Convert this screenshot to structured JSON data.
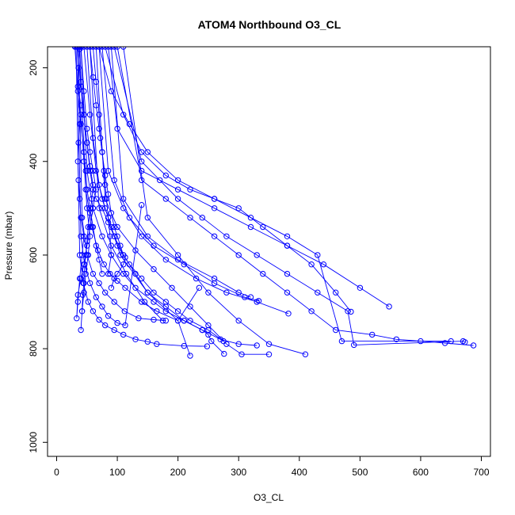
{
  "chart_data": {
    "type": "scatter",
    "title": "ATOM4 Northbound O3_CL",
    "xlabel": "O3_CL",
    "ylabel": "Pressure (mbar)",
    "xlim": [
      -15,
      715
    ],
    "ylim": [
      1030,
      155
    ],
    "y_reversed": true,
    "xticks": [
      0,
      100,
      200,
      300,
      400,
      500,
      600,
      700
    ],
    "yticks": [
      200,
      400,
      600,
      800,
      1000
    ],
    "grid": false,
    "series_color": "#0000ff",
    "series": [
      {
        "x": [
          40,
          45,
          50,
          55,
          60,
          65,
          60,
          55,
          50,
          45,
          40,
          35,
          33,
          35,
          38,
          42,
          45,
          40,
          38,
          36,
          35,
          36,
          38,
          40,
          35,
          36,
          38
        ],
        "y": [
          155,
          250,
          330,
          380,
          420,
          460,
          500,
          540,
          580,
          620,
          650,
          685,
          735,
          700,
          650,
          600,
          560,
          520,
          480,
          440,
          400,
          360,
          320,
          280,
          240,
          200,
          160
        ]
      },
      {
        "x": [
          35,
          40,
          45,
          50,
          55,
          60,
          58,
          55,
          52,
          50,
          48,
          46,
          45,
          43,
          42,
          40,
          42,
          45,
          48,
          52,
          55,
          50,
          45,
          40
        ],
        "y": [
          155,
          230,
          300,
          360,
          410,
          450,
          480,
          510,
          540,
          570,
          600,
          630,
          660,
          685,
          720,
          760,
          720,
          680,
          640,
          600,
          560,
          500,
          400,
          300
        ]
      },
      {
        "x": [
          55,
          60,
          65,
          70,
          75,
          80,
          85,
          90,
          95,
          100,
          105,
          110,
          113,
          110,
          100,
          95,
          90
        ],
        "y": [
          155,
          220,
          280,
          330,
          380,
          430,
          470,
          510,
          540,
          560,
          580,
          600,
          605,
          620,
          640,
          650,
          670
        ]
      },
      {
        "x": [
          60,
          65,
          70,
          72,
          75,
          78,
          80,
          82,
          85,
          88,
          90,
          85
        ],
        "y": [
          155,
          230,
          300,
          350,
          380,
          420,
          450,
          480,
          520,
          560,
          600,
          640
        ]
      },
      {
        "x": [
          30,
          35,
          40,
          45,
          48,
          50,
          55,
          60,
          65,
          70,
          75
        ],
        "y": [
          155,
          250,
          320,
          380,
          420,
          460,
          500,
          540,
          580,
          610,
          640
        ]
      },
      {
        "x": [
          35,
          40,
          45,
          50,
          55,
          60,
          65,
          75,
          85,
          95,
          105,
          150,
          200,
          220
        ],
        "y": [
          155,
          240,
          300,
          360,
          420,
          460,
          480,
          500,
          530,
          560,
          600,
          680,
          740,
          815
        ]
      },
      {
        "x": [
          70,
          90,
          120,
          150,
          200,
          260,
          320,
          380,
          430,
          470,
          650
        ],
        "y": [
          155,
          250,
          320,
          380,
          440,
          480,
          520,
          560,
          600,
          784,
          784
        ]
      },
      {
        "x": [
          80,
          110,
          140,
          180,
          220,
          260,
          300,
          340,
          380,
          420,
          460,
          485
        ],
        "y": [
          155,
          300,
          380,
          430,
          460,
          480,
          500,
          540,
          580,
          620,
          680,
          721
        ]
      },
      {
        "x": [
          85,
          100,
          140,
          200,
          260,
          320,
          380,
          440,
          500,
          548
        ],
        "y": [
          155,
          330,
          420,
          460,
          500,
          540,
          580,
          620,
          670,
          710
        ]
      },
      {
        "x": [
          95,
          140,
          170,
          200,
          240,
          280,
          330,
          380,
          430,
          480,
          490,
          670,
          673
        ],
        "y": [
          155,
          400,
          440,
          480,
          520,
          560,
          600,
          640,
          680,
          720,
          792,
          784,
          786
        ]
      },
      {
        "x": [
          100,
          140,
          180,
          220,
          260,
          300,
          340,
          380,
          420,
          460,
          520,
          560,
          600,
          640,
          687
        ],
        "y": [
          155,
          440,
          480,
          520,
          560,
          600,
          640,
          680,
          720,
          760,
          770,
          780,
          784,
          788,
          793
        ]
      },
      {
        "x": [
          110,
          150,
          200,
          250,
          300,
          350,
          410
        ],
        "y": [
          155,
          520,
          600,
          680,
          740,
          790,
          812
        ]
      },
      {
        "x": [
          65,
          80,
          100,
          130,
          160,
          190,
          220,
          250,
          280,
          305,
          350
        ],
        "y": [
          155,
          480,
          540,
          590,
          630,
          670,
          710,
          750,
          790,
          812,
          812
        ]
      },
      {
        "x": [
          45,
          55,
          65,
          75,
          85,
          95,
          110,
          130,
          150,
          180,
          210,
          240,
          270,
          300,
          330
        ],
        "y": [
          155,
          300,
          420,
          480,
          520,
          560,
          600,
          640,
          680,
          710,
          740,
          760,
          780,
          790,
          793
        ]
      },
      {
        "x": [
          50,
          60,
          70,
          80,
          90,
          100,
          120,
          140,
          160,
          180,
          200,
          220,
          250,
          275
        ],
        "y": [
          155,
          350,
          450,
          500,
          540,
          580,
          620,
          650,
          680,
          700,
          720,
          740,
          760,
          784
        ]
      },
      {
        "x": [
          40,
          50,
          60,
          75,
          90,
          110,
          130,
          160,
          180,
          210,
          240,
          250,
          255,
          276
        ],
        "y": [
          155,
          420,
          500,
          560,
          600,
          640,
          670,
          700,
          720,
          740,
          760,
          770,
          784,
          811
        ]
      },
      {
        "x": [
          38,
          48,
          58,
          68,
          78,
          88,
          100,
          113,
          140,
          165,
          200,
          235
        ],
        "y": [
          155,
          460,
          540,
          590,
          620,
          640,
          655,
          670,
          700,
          720,
          740,
          670
        ]
      },
      {
        "x": [
          36,
          42,
          50,
          60,
          70,
          80,
          95,
          112,
          135,
          160,
          180
        ],
        "y": [
          155,
          520,
          600,
          640,
          660,
          680,
          700,
          720,
          735,
          738,
          740
        ]
      },
      {
        "x": [
          34,
          40,
          46,
          55,
          65,
          75,
          85,
          100,
          113,
          140
        ],
        "y": [
          155,
          560,
          620,
          660,
          690,
          710,
          730,
          745,
          750,
          493
        ]
      },
      {
        "x": [
          32,
          38,
          44,
          52,
          60,
          70,
          80,
          95,
          110,
          130,
          150,
          165,
          210,
          248
        ],
        "y": [
          155,
          600,
          660,
          700,
          720,
          738,
          750,
          760,
          770,
          780,
          785,
          790,
          794,
          795
        ]
      },
      {
        "x": [
          90,
          110,
          150,
          200,
          260,
          300,
          320
        ],
        "y": [
          155,
          480,
          560,
          610,
          650,
          680,
          690
        ]
      },
      {
        "x": [
          75,
          95,
          120,
          160,
          210,
          260,
          310,
          333
        ],
        "y": [
          155,
          440,
          520,
          580,
          620,
          660,
          690,
          698
        ]
      },
      {
        "x": [
          70,
          85,
          110,
          140,
          180,
          230,
          280,
          330,
          382
        ],
        "y": [
          155,
          420,
          500,
          560,
          610,
          650,
          680,
          700,
          725
        ]
      },
      {
        "x": [
          55,
          70,
          90,
          115,
          145,
          175
        ],
        "y": [
          155,
          500,
          580,
          640,
          700,
          740
        ]
      }
    ]
  }
}
